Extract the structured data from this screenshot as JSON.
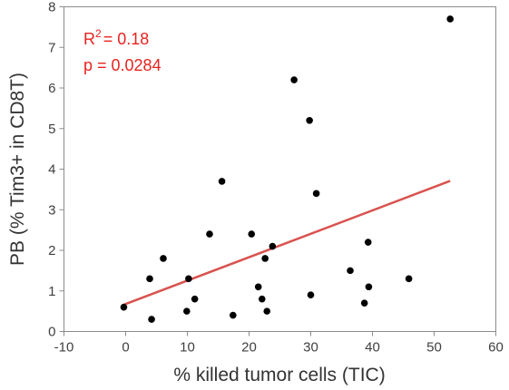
{
  "chart_data": {
    "type": "scatter",
    "xlabel": "% killed tumor cells (TIC)",
    "ylabel": "PB (% Tim3+ in CD8T)",
    "xlim": [
      -10,
      60
    ],
    "ylim": [
      0,
      8
    ],
    "xticks": [
      -10,
      0,
      10,
      20,
      30,
      40,
      50,
      60
    ],
    "yticks": [
      0,
      1,
      2,
      3,
      4,
      5,
      6,
      7,
      8
    ],
    "grid": false,
    "points": [
      {
        "x": -0.3,
        "y": 0.6
      },
      {
        "x": 3.9,
        "y": 1.3
      },
      {
        "x": 4.2,
        "y": 0.3
      },
      {
        "x": 6.1,
        "y": 1.8
      },
      {
        "x": 9.9,
        "y": 0.5
      },
      {
        "x": 10.2,
        "y": 1.3
      },
      {
        "x": 11.2,
        "y": 0.8
      },
      {
        "x": 13.6,
        "y": 2.4
      },
      {
        "x": 15.6,
        "y": 3.7
      },
      {
        "x": 17.4,
        "y": 0.4
      },
      {
        "x": 20.4,
        "y": 2.4
      },
      {
        "x": 21.5,
        "y": 1.1
      },
      {
        "x": 22.1,
        "y": 0.8
      },
      {
        "x": 22.6,
        "y": 1.8
      },
      {
        "x": 22.9,
        "y": 0.5
      },
      {
        "x": 23.8,
        "y": 2.1
      },
      {
        "x": 27.3,
        "y": 6.2
      },
      {
        "x": 29.8,
        "y": 5.2
      },
      {
        "x": 30.0,
        "y": 0.9
      },
      {
        "x": 30.9,
        "y": 3.4
      },
      {
        "x": 36.4,
        "y": 1.5
      },
      {
        "x": 38.7,
        "y": 0.7
      },
      {
        "x": 39.3,
        "y": 2.2
      },
      {
        "x": 39.4,
        "y": 1.1
      },
      {
        "x": 45.9,
        "y": 1.3
      },
      {
        "x": 52.6,
        "y": 7.7
      }
    ],
    "regression_line": {
      "x": [
        -0.3,
        52.6
      ],
      "y": [
        0.66,
        3.71
      ],
      "color": "#d9534f"
    },
    "annotations": {
      "r2_prefix": "R",
      "r2_sup": "2",
      "r2_value": "= 0.18",
      "p_text": "p = 0.0284",
      "color": "#e8231f"
    },
    "colors": {
      "points": "#000000",
      "axes": "#8c8c8c"
    }
  }
}
